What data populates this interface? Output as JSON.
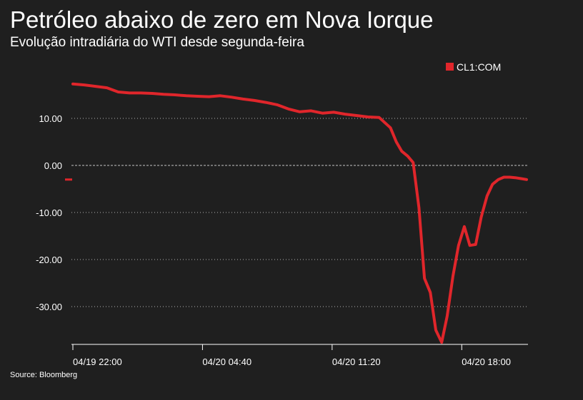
{
  "header": {
    "title": "Petróleo abaixo de zero em Nova Iorque",
    "subtitle": "Evolução intradiária do WTI desde segunda-feira"
  },
  "footer": {
    "source": "Source: Bloomberg"
  },
  "colors": {
    "background": "#1f1f1f",
    "series": "#e0262b",
    "grid": "#d9d9d9",
    "text": "#ffffff"
  },
  "chart_data": {
    "type": "line",
    "title": "Petróleo abaixo de zero em Nova Iorque",
    "subtitle": "Evolução intradiária do WTI desde segunda-feira",
    "xlabel": "",
    "ylabel": "",
    "ylim": [
      -38,
      17.5
    ],
    "y_ticks": [
      10,
      0,
      -10,
      -20,
      -30
    ],
    "y_tick_labels": [
      "10.00",
      "0.00",
      "-10.00",
      "-20.00",
      "-30.00"
    ],
    "x_ticks": [
      "04/19 22:00",
      "04/20 04:40",
      "04/20 11:20",
      "04/20 18:00"
    ],
    "grid": "horizontal dotted",
    "legend": {
      "position": "top-right",
      "entries": [
        "CL1:COM"
      ]
    },
    "series": [
      {
        "name": "CL1:COM",
        "last_value_marker": -3,
        "x": [
          "04/19 22:00",
          "04/19 22:35",
          "04/19 23:10",
          "04/19 23:45",
          "04/20 00:20",
          "04/20 00:55",
          "04/20 01:30",
          "04/20 02:05",
          "04/20 02:40",
          "04/20 03:15",
          "04/20 03:50",
          "04/20 04:25",
          "04/20 05:00",
          "04/20 05:35",
          "04/20 06:10",
          "04/20 06:45",
          "04/20 07:20",
          "04/20 07:55",
          "04/20 08:30",
          "04/20 09:05",
          "04/20 09:40",
          "04/20 10:15",
          "04/20 10:50",
          "04/20 11:25",
          "04/20 12:00",
          "04/20 12:35",
          "04/20 13:10",
          "04/20 13:45",
          "04/20 14:20",
          "04/20 14:38",
          "04/20 14:55",
          "04/20 15:13",
          "04/20 15:30",
          "04/20 15:48",
          "04/20 16:05",
          "04/20 16:23",
          "04/20 16:40",
          "04/20 16:58",
          "04/20 17:15",
          "04/20 17:33",
          "04/20 17:50",
          "04/20 18:08",
          "04/20 18:25",
          "04/20 18:43",
          "04/20 19:00",
          "04/20 19:18",
          "04/20 19:35",
          "04/20 19:53",
          "04/20 20:10",
          "04/20 20:28",
          "04/20 20:45",
          "04/20 21:03",
          "04/20 21:20"
        ],
        "values": [
          17.3,
          17.1,
          16.8,
          16.5,
          15.6,
          15.4,
          15.4,
          15.3,
          15.1,
          15.0,
          14.8,
          14.7,
          14.6,
          14.8,
          14.5,
          14.1,
          13.8,
          13.4,
          12.9,
          12.0,
          11.4,
          11.6,
          11.1,
          11.3,
          10.9,
          10.6,
          10.3,
          10.2,
          8.0,
          5.0,
          3.0,
          2.0,
          0.6,
          -9.0,
          -24.0,
          -27.0,
          -35.0,
          -37.6,
          -32.0,
          -23.5,
          -17.0,
          -13.0,
          -17.0,
          -16.8,
          -11.0,
          -6.5,
          -4.0,
          -3.0,
          -2.5,
          -2.5,
          -2.6,
          -2.8,
          -3.0
        ]
      }
    ]
  }
}
